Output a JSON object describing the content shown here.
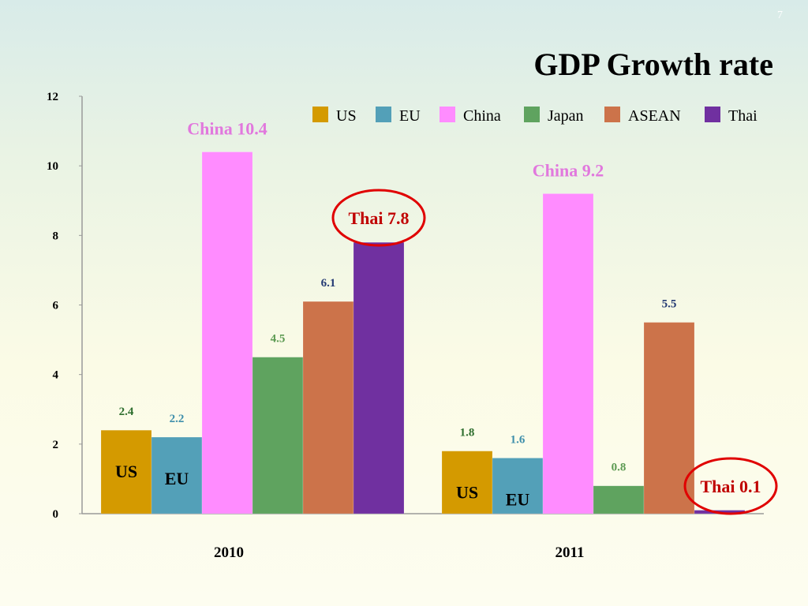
{
  "slide": {
    "number": "7",
    "title": "GDP Growth rate"
  },
  "chart_data": {
    "type": "bar",
    "title": "GDP Growth rate",
    "categories": [
      "2010",
      "2011"
    ],
    "ylim": [
      0,
      12
    ],
    "yticks": [
      0,
      2,
      4,
      6,
      8,
      10,
      12
    ],
    "legend_position": "top",
    "series": [
      {
        "name": "US",
        "color": "#d49a00",
        "values": [
          2.4,
          1.8
        ],
        "labels": [
          "2.4",
          "1.8"
        ],
        "label_color": "#2e6e2e"
      },
      {
        "name": "EU",
        "color": "#53a0b8",
        "values": [
          2.2,
          1.6
        ],
        "labels": [
          "2.2",
          "1.6"
        ],
        "label_color": "#3f8fab"
      },
      {
        "name": "China",
        "color": "#ff8cff",
        "values": [
          10.4,
          9.2
        ],
        "labels": [
          "",
          ""
        ],
        "label_color": "#e178dd"
      },
      {
        "name": "Japan",
        "color": "#5fa35f",
        "values": [
          4.5,
          0.8
        ],
        "labels": [
          "4.5",
          "0.8"
        ],
        "label_color": "#5c9a52"
      },
      {
        "name": "ASEAN",
        "color": "#cc734a",
        "values": [
          6.1,
          5.5
        ],
        "labels": [
          "6.1",
          "5.5"
        ],
        "label_color": "#243a73"
      },
      {
        "name": "Thai",
        "color": "#7030a0",
        "values": [
          7.8,
          0.1
        ],
        "labels": [
          "",
          ""
        ],
        "label_color": "#c00000"
      }
    ],
    "bar_name_labels": [
      {
        "text": "US",
        "series": 0,
        "category": 0
      },
      {
        "text": "EU",
        "series": 1,
        "category": 0
      },
      {
        "text": "US",
        "series": 0,
        "category": 1
      },
      {
        "text": "EU",
        "series": 1,
        "category": 1
      }
    ],
    "annotations": [
      {
        "text": "China 10.4",
        "series": 2,
        "category": 0,
        "color": "#e178dd",
        "circled": false
      },
      {
        "text": "China 9.2",
        "series": 2,
        "category": 1,
        "color": "#e178dd",
        "circled": false
      },
      {
        "text": "Thai 7.8",
        "series": 5,
        "category": 0,
        "color": "#c00000",
        "circled": true,
        "circle_color": "#e00000"
      },
      {
        "text": "Thai 0.1",
        "series": 5,
        "category": 1,
        "color": "#c00000",
        "circled": true,
        "circle_color": "#e00000"
      }
    ]
  }
}
